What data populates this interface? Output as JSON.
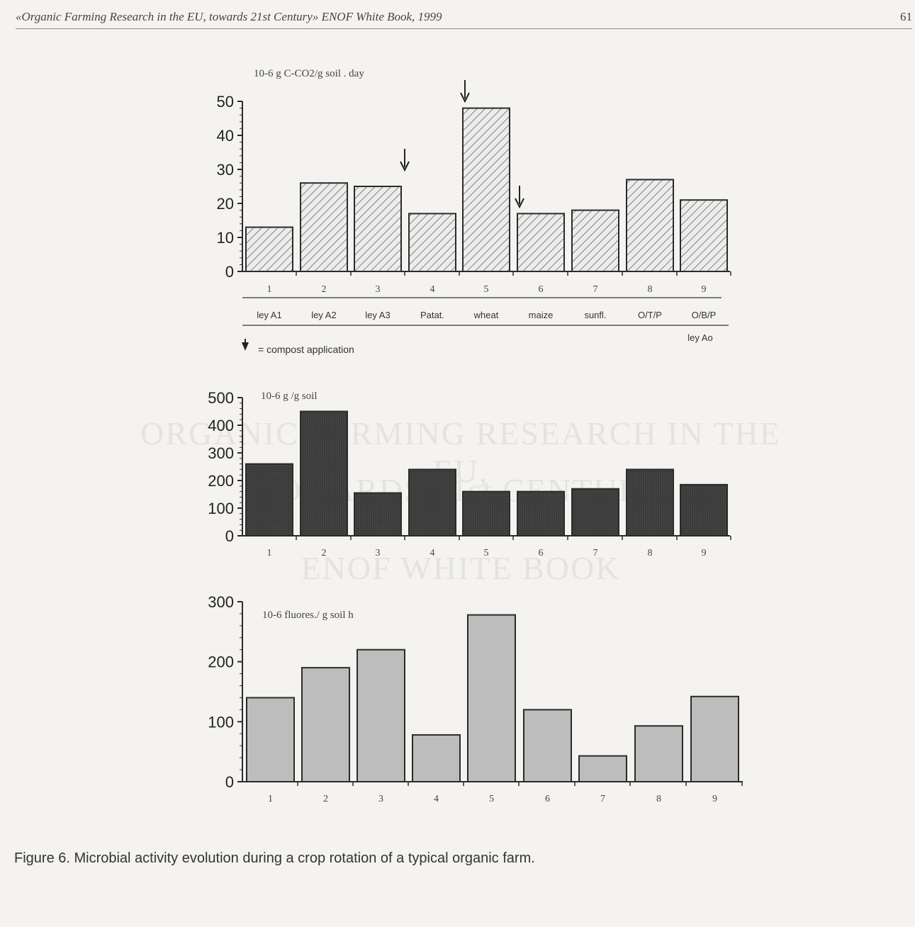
{
  "header": {
    "title": "«Organic Farming Research in the EU, towards 21st Century» ENOF White Book, 1999",
    "page_number": "61"
  },
  "watermark": {
    "line1": "ORGANIC FARMING RESEARCH IN THE EU,",
    "line2": "TOWARDS 21st CENTURY",
    "line3": "ENOF WHITE BOOK"
  },
  "colors": {
    "bar_outline": "#2b2b2b",
    "hatch_fill": "#e9e9e9",
    "dark_bar": "#3a3a3a",
    "light_bar": "#bdbdbd"
  },
  "chart_data": [
    {
      "type": "bar",
      "unit_label": "10-6 g C-CO2/g soil . day",
      "categories": [
        "1",
        "2",
        "3",
        "4",
        "5",
        "6",
        "7",
        "8",
        "9"
      ],
      "category_names": [
        "ley A1",
        "ley A2",
        "ley A3",
        "Patat.",
        "wheat",
        "maize",
        "sunfl.",
        "O/T/P",
        "O/B/P"
      ],
      "extra_label": "ley Ao",
      "values": [
        13,
        26,
        25,
        17,
        48,
        17,
        18,
        27,
        21
      ],
      "ylim": [
        0,
        50
      ],
      "yticks": [
        0,
        10,
        20,
        30,
        40,
        50
      ],
      "fill": "hatched",
      "compost_after_categories": [
        3,
        4,
        5
      ],
      "legend": "= compost application"
    },
    {
      "type": "bar",
      "unit_label": "10-6 g /g soil",
      "categories": [
        "1",
        "2",
        "3",
        "4",
        "5",
        "6",
        "7",
        "8",
        "9"
      ],
      "values": [
        260,
        450,
        155,
        240,
        160,
        160,
        170,
        240,
        185
      ],
      "ylim": [
        0,
        500
      ],
      "yticks": [
        0,
        100,
        200,
        300,
        400,
        500
      ],
      "fill": "dark"
    },
    {
      "type": "bar",
      "unit_label": "10-6 fluores./ g soil h",
      "categories": [
        "1",
        "2",
        "3",
        "4",
        "5",
        "6",
        "7",
        "8",
        "9"
      ],
      "values": [
        140,
        190,
        220,
        78,
        278,
        120,
        43,
        93,
        142
      ],
      "ylim": [
        0,
        300
      ],
      "yticks": [
        0,
        100,
        200,
        300
      ],
      "fill": "light"
    }
  ],
  "caption": "Figure 6. Microbial activity evolution during a crop rotation of a typical organic farm."
}
